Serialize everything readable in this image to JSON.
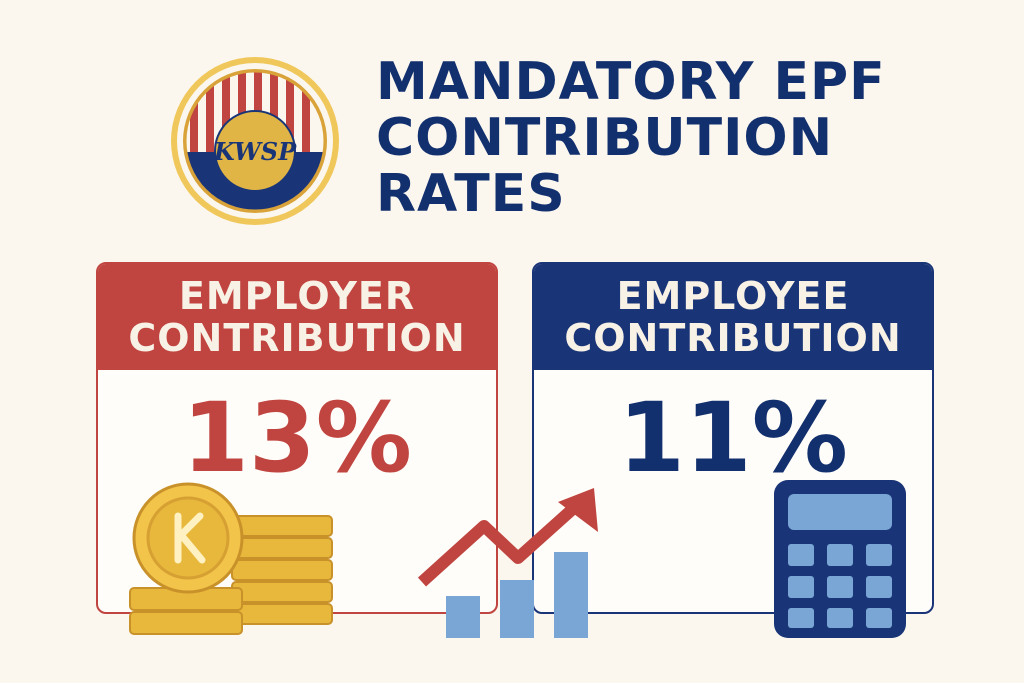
{
  "logo": {
    "monogram": "KWSP",
    "colors": {
      "gold": "#e0b545",
      "red": "#c0443f",
      "navy": "#1a3577"
    }
  },
  "title": {
    "line1": "MANDATORY EPF",
    "line2": "CONTRIBUTION",
    "line3": "RATES"
  },
  "employer": {
    "label_line1": "EMPLOYER",
    "label_line2": "CONTRIBUTION",
    "rate": "13%"
  },
  "employee": {
    "label_line1": "EMPLOYEE",
    "label_line2": "CONTRIBUTION",
    "rate": "11%"
  },
  "icons": [
    "coins-icon",
    "growth-chart-icon",
    "calculator-icon"
  ],
  "colors": {
    "background": "#fbf7ef",
    "red": "#c0443f",
    "navy": "#1a3577",
    "gold": "#e8b83c",
    "lightblue": "#7aa6d6"
  }
}
